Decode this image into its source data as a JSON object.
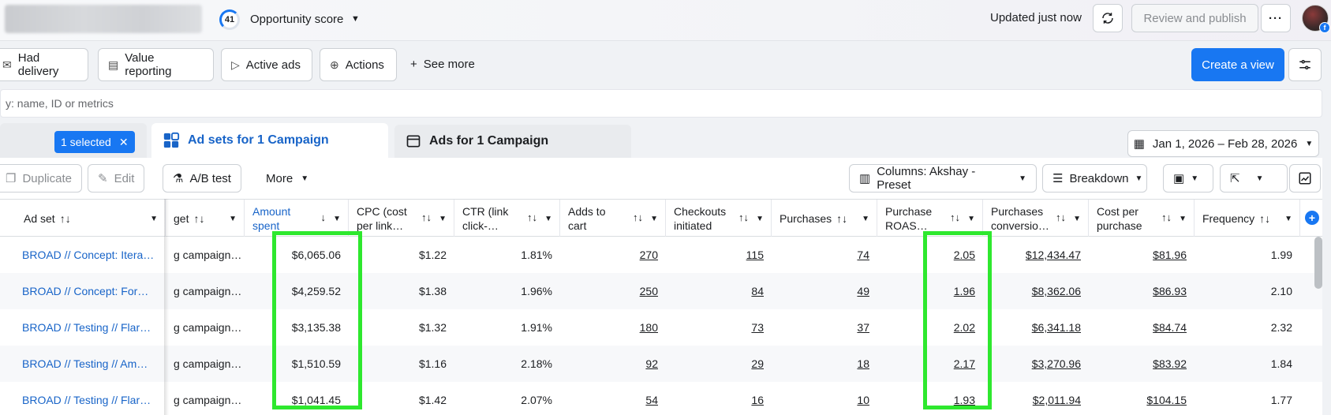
{
  "topbar": {
    "score_value": "41",
    "score_label": "Opportunity score",
    "updated": "Updated just now",
    "review_label": "Review and publish",
    "more_label": "···"
  },
  "filters": {
    "chips": [
      "Had delivery",
      "Value reporting",
      "Active ads",
      "Actions"
    ],
    "see_more": "See more",
    "create_view": "Create a view"
  },
  "search": {
    "placeholder": "y: name, ID or metrics"
  },
  "tabs": {
    "selected_pill": "1 selected",
    "active": "Ad sets for 1 Campaign",
    "inactive": "Ads for 1 Campaign",
    "date_range": "Jan 1, 2026 – Feb 28, 2026"
  },
  "toolbar": {
    "duplicate": "Duplicate",
    "edit": "Edit",
    "ab_test": "A/B test",
    "more": "More",
    "columns": "Columns: Akshay - Preset",
    "breakdown": "Breakdown"
  },
  "table": {
    "headers": {
      "adset": "Ad set",
      "budget": "get",
      "amount_1": "Amount",
      "amount_2": "spent",
      "cpc_1": "CPC (cost",
      "cpc_2": "per link…",
      "ctr_1": "CTR (link",
      "ctr_2": "click-…",
      "atc_1": "Adds to",
      "atc_2": "cart",
      "chk_1": "Checkouts",
      "chk_2": "initiated",
      "purchases": "Purchases",
      "roas_1": "Purchase",
      "roas_2": "ROAS…",
      "conv_1": "Purchases",
      "conv_2": "conversio…",
      "cpp_1": "Cost per",
      "cpp_2": "purchase",
      "frequency": "Frequency"
    },
    "rows": [
      {
        "adset": "BROAD // Concept: Itera…",
        "budget": "g campaign…",
        "amount": "$6,065.06",
        "cpc": "$1.22",
        "ctr": "1.81%",
        "atc": "270",
        "chk": "115",
        "purch": "74",
        "roas": "2.05",
        "conv": "$12,434.47",
        "cpp": "$81.96",
        "freq": "1.99"
      },
      {
        "adset": "BROAD // Concept: For…",
        "budget": "g campaign…",
        "amount": "$4,259.52",
        "cpc": "$1.38",
        "ctr": "1.96%",
        "atc": "250",
        "chk": "84",
        "purch": "49",
        "roas": "1.96",
        "conv": "$8,362.06",
        "cpp": "$86.93",
        "freq": "2.10"
      },
      {
        "adset": "BROAD // Testing // Flar…",
        "budget": "g campaign…",
        "amount": "$3,135.38",
        "cpc": "$1.32",
        "ctr": "1.91%",
        "atc": "180",
        "chk": "73",
        "purch": "37",
        "roas": "2.02",
        "conv": "$6,341.18",
        "cpp": "$84.74",
        "freq": "2.32"
      },
      {
        "adset": "BROAD // Testing // Am…",
        "budget": "g campaign…",
        "amount": "$1,510.59",
        "cpc": "$1.16",
        "ctr": "2.18%",
        "atc": "92",
        "chk": "29",
        "purch": "18",
        "roas": "2.17",
        "conv": "$3,270.96",
        "cpp": "$83.92",
        "freq": "1.84"
      },
      {
        "adset": "BROAD // Testing // Flar…",
        "budget": "g campaign…",
        "amount": "$1,041.45",
        "cpc": "$1.42",
        "ctr": "2.07%",
        "atc": "54",
        "chk": "16",
        "purch": "10",
        "roas": "1.93",
        "conv": "$2,011.94",
        "cpp": "$104.15",
        "freq": "1.77"
      }
    ]
  },
  "colors": {
    "accent": "#1877f2",
    "highlight": "#2ee82e"
  }
}
